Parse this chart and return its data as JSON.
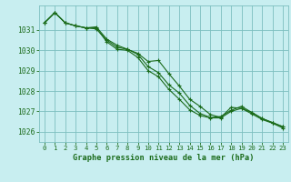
{
  "title": "Graphe pression niveau de la mer (hPa)",
  "background_color": "#c8eef0",
  "grid_color": "#7dbfbf",
  "line_color": "#1a6b1a",
  "xlim": [
    -0.5,
    23.5
  ],
  "ylim": [
    1025.5,
    1032.2
  ],
  "yticks": [
    1026,
    1027,
    1028,
    1029,
    1030,
    1031
  ],
  "xticks": [
    0,
    1,
    2,
    3,
    4,
    5,
    6,
    7,
    8,
    9,
    10,
    11,
    12,
    13,
    14,
    15,
    16,
    17,
    18,
    19,
    20,
    21,
    22,
    23
  ],
  "series1": [
    1031.35,
    1031.85,
    1031.35,
    1031.2,
    1031.1,
    1031.05,
    1030.5,
    1030.15,
    1030.05,
    1029.85,
    1029.45,
    1029.5,
    1028.85,
    1028.25,
    1027.6,
    1027.25,
    1026.85,
    1026.7,
    1027.2,
    1027.15,
    1026.95,
    1026.65,
    1026.45,
    1026.25
  ],
  "series2": [
    1031.35,
    1031.85,
    1031.35,
    1031.2,
    1031.1,
    1031.15,
    1030.55,
    1030.25,
    1030.05,
    1029.8,
    1029.2,
    1028.9,
    1028.3,
    1027.9,
    1027.3,
    1026.9,
    1026.7,
    1026.75,
    1027.05,
    1027.25,
    1026.95,
    1026.65,
    1026.45,
    1026.25
  ],
  "series3": [
    1031.35,
    1031.85,
    1031.35,
    1031.2,
    1031.1,
    1031.1,
    1030.42,
    1030.05,
    1030.0,
    1029.65,
    1029.0,
    1028.7,
    1028.08,
    1027.6,
    1027.08,
    1026.8,
    1026.68,
    1026.68,
    1027.0,
    1027.15,
    1026.88,
    1026.6,
    1026.42,
    1026.18
  ]
}
